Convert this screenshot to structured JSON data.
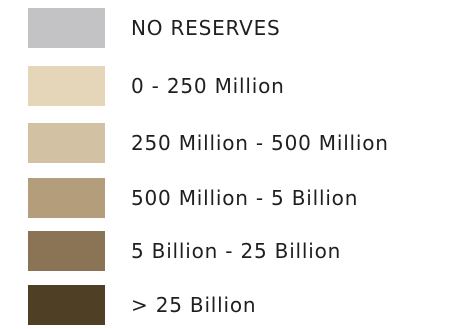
{
  "legend": {
    "items": [
      {
        "label": "NO RESERVES",
        "color": "#c3c3c5"
      },
      {
        "label": "0 - 250 Million",
        "color": "#e5d6ba"
      },
      {
        "label": "250 Million - 500 Million",
        "color": "#d2c1a2"
      },
      {
        "label": "500 Million - 5 Billion",
        "color": "#b49d7a"
      },
      {
        "label": "5 Billion - 25 Billion",
        "color": "#8a7455"
      },
      {
        "label": "> 25 Billion",
        "color": "#4f3f24"
      }
    ]
  }
}
